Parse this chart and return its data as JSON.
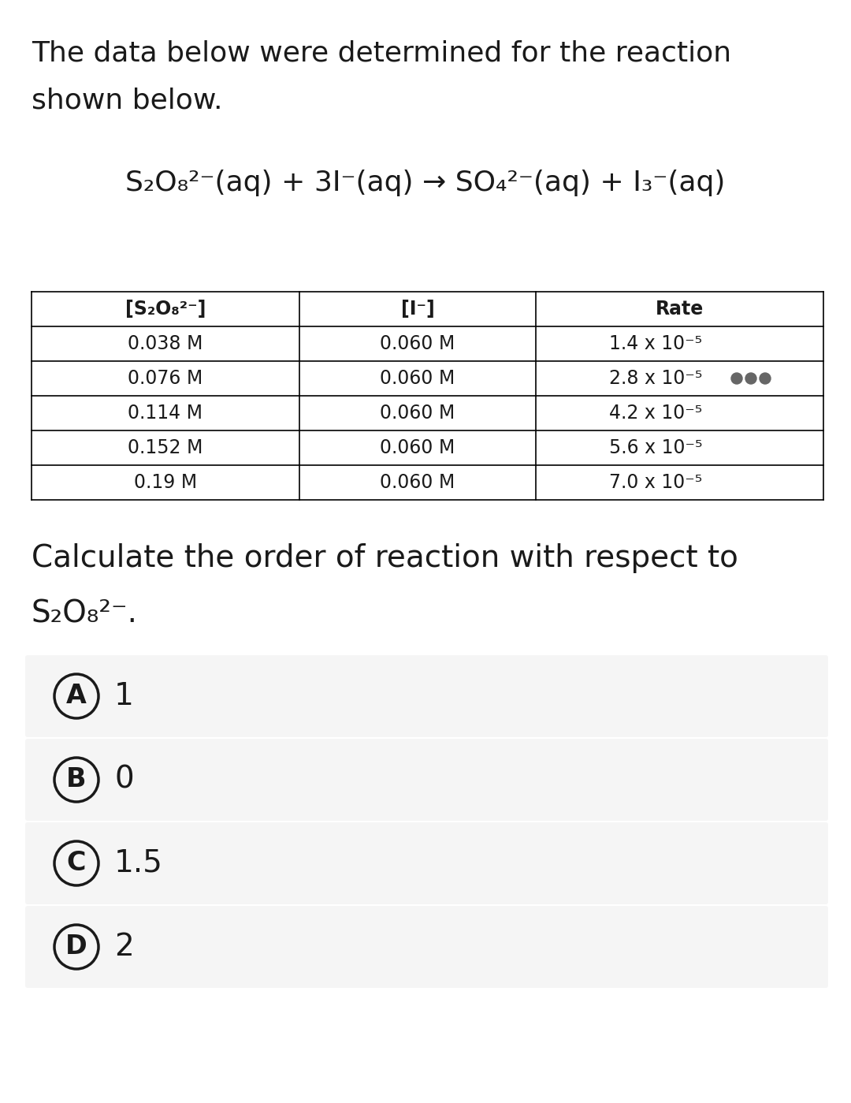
{
  "background_color": "#ffffff",
  "intro_text_line1": "The data below were determined for the reaction",
  "intro_text_line2": "shown below.",
  "reaction_parts": {
    "full": "S₂O₈²⁻(aq) + 3I⁻(aq) → SO₄²⁻(aq) + I₃⁻(aq)"
  },
  "table_headers": [
    "[S₂O₈²⁻]",
    "[I⁻]",
    "Rate"
  ],
  "table_col1": [
    "0.038 M",
    "0.076 M",
    "0.114 M",
    "0.152 M",
    "0.19 M"
  ],
  "table_col2": [
    "0.060 M",
    "0.060 M",
    "0.060 M",
    "0.060 M",
    "0.060 M"
  ],
  "table_col3": [
    "1.4 x 10⁻⁵",
    "2.8 x 10⁻⁵",
    "4.2 x 10⁻⁵",
    "5.6 x 10⁻⁵",
    "7.0 x 10⁻⁵"
  ],
  "dots_row": 1,
  "question_line1": "Calculate the order of reaction with respect to",
  "question_line2": "S₂O₈²⁻.",
  "choices": [
    "A",
    "B",
    "C",
    "D"
  ],
  "choice_values": [
    "1",
    "0",
    "1.5",
    "2"
  ],
  "choice_bg": "#f5f5f5",
  "circle_color": "#1a1a1a",
  "text_color": "#1a1a1a",
  "table_border_color": "#000000",
  "dot_color": "#666666"
}
